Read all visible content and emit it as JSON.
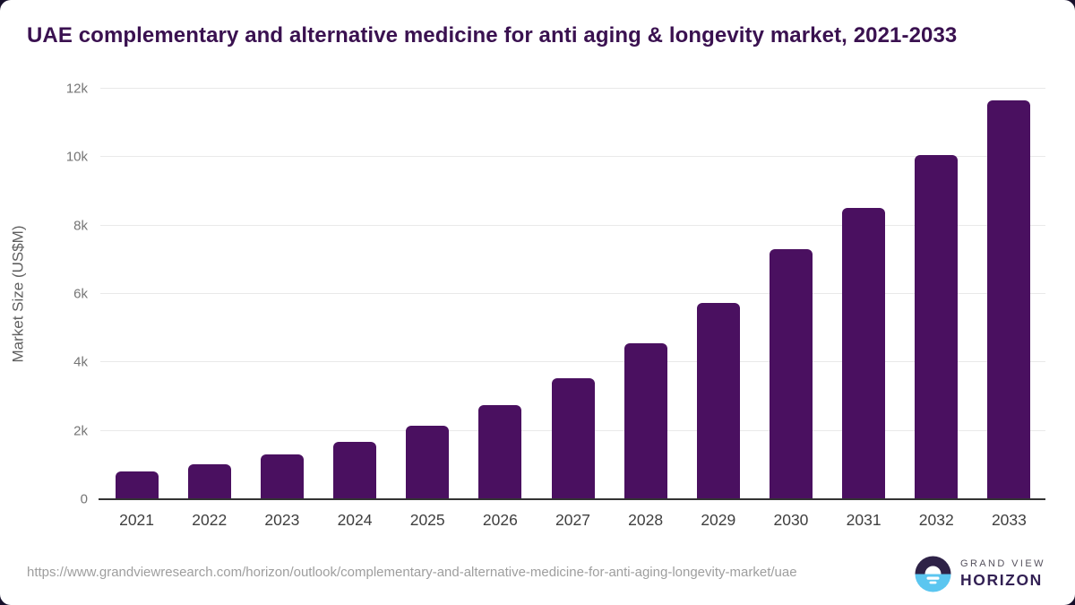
{
  "title": "UAE complementary and alternative medicine for anti aging & longevity market, 2021-2033",
  "chart_data": {
    "type": "bar",
    "title": "UAE complementary and alternative medicine for anti aging & longevity market, 2021-2033",
    "categories": [
      "2021",
      "2022",
      "2023",
      "2024",
      "2025",
      "2026",
      "2027",
      "2028",
      "2029",
      "2030",
      "2031",
      "2032",
      "2033"
    ],
    "values": [
      800,
      1020,
      1300,
      1680,
      2150,
      2750,
      3540,
      4550,
      5750,
      7300,
      8520,
      10050,
      11650
    ],
    "xlabel": "",
    "ylabel": "Market Size (US$M)",
    "ylim": [
      0,
      12000
    ],
    "yticks": {
      "values": [
        0,
        2000,
        4000,
        6000,
        8000,
        10000,
        12000
      ],
      "labels": [
        "0",
        "2k",
        "4k",
        "6k",
        "8k",
        "10k",
        "12k"
      ]
    },
    "grid": true,
    "legend": "none",
    "bar_color": "#4a1060"
  },
  "footer": {
    "source_url": "https://www.grandviewresearch.com/horizon/outlook/complementary-and-alternative-medicine-for-anti-aging-longevity-market/uae",
    "logo": {
      "line1": "GRAND VIEW",
      "line2": "HORIZON"
    }
  },
  "colors": {
    "title_text": "#3a1150",
    "bar": "#4a1060",
    "axis_line": "#333333",
    "gridline": "#e9e9e9",
    "ytick_text": "#757575",
    "xtick_text": "#3f3f3f",
    "url_text": "#9e9e9e",
    "logo_dark_half": "#2e2247",
    "logo_blue_half": "#5bc6f0",
    "logo_horizon_text": "#332154"
  }
}
